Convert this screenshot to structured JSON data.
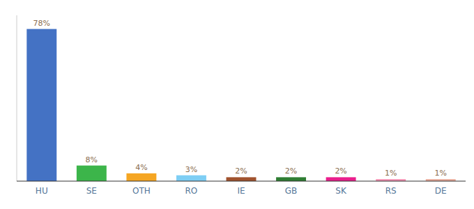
{
  "chart_data": {
    "type": "bar",
    "categories": [
      "HU",
      "SE",
      "OTH",
      "RO",
      "IE",
      "GB",
      "SK",
      "RS",
      "DE"
    ],
    "values": [
      78,
      8,
      4,
      3,
      2,
      2,
      2,
      1,
      1
    ],
    "value_labels": [
      "78%",
      "8%",
      "4%",
      "3%",
      "2%",
      "2%",
      "2%",
      "1%",
      "1%"
    ],
    "colors": [
      "#4472c4",
      "#3cb54a",
      "#f5a623",
      "#7ecef4",
      "#a0522d",
      "#2e7d32",
      "#e91e8c",
      "#f48fb1",
      "#e8a898"
    ],
    "ylim": [
      0,
      85
    ],
    "data_labels": true,
    "tick_labels": "x",
    "grid": false
  }
}
